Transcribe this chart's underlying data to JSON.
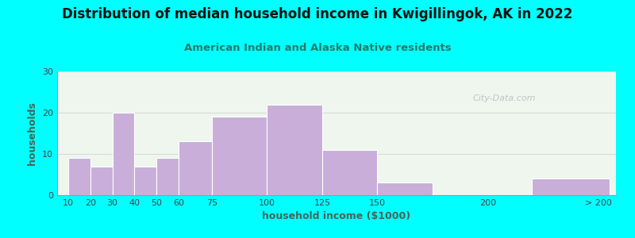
{
  "title": "Distribution of median household income in Kwigillingok, AK in 2022",
  "subtitle": "American Indian and Alaska Native residents",
  "xlabel": "household income ($1000)",
  "ylabel": "households",
  "background_color": "#00FFFF",
  "plot_bg_color": "#eef6ee",
  "bar_color": "#c8aed8",
  "bar_edge_color": "#ffffff",
  "title_color": "#111111",
  "subtitle_color": "#2a7a6a",
  "axis_label_color": "#446655",
  "tick_label_color": "#444444",
  "bar_values": [
    9,
    7,
    20,
    7,
    9,
    13,
    19,
    22,
    11,
    3,
    0,
    4
  ],
  "ylim": [
    0,
    30
  ],
  "yticks": [
    0,
    10,
    20,
    30
  ],
  "tick_positions": [
    10,
    20,
    30,
    40,
    50,
    60,
    75,
    100,
    125,
    150,
    200,
    250
  ],
  "tick_labels": [
    "10",
    "20",
    "30",
    "40",
    "50",
    "60",
    "75",
    "100",
    "125",
    "150",
    "200",
    "> 200"
  ],
  "bar_lefts": [
    10,
    20,
    30,
    40,
    50,
    60,
    75,
    100,
    125,
    150,
    200,
    220
  ],
  "bar_widths_data": [
    10,
    10,
    10,
    10,
    10,
    15,
    25,
    25,
    25,
    25,
    20,
    35
  ],
  "xlim": [
    5,
    258
  ],
  "watermark": "City-Data.com",
  "title_fontsize": 12,
  "subtitle_fontsize": 9.5,
  "label_fontsize": 9,
  "tick_fontsize": 8
}
